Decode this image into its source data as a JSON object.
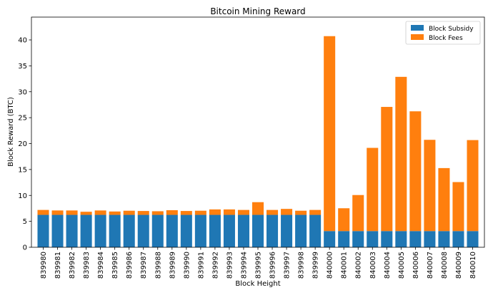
{
  "chart_data": {
    "type": "bar",
    "stacked": true,
    "title": "Bitcoin Mining Reward",
    "xlabel": "Block Height",
    "ylabel": "Block Reward (BTC)",
    "ylim": [
      0,
      44.4
    ],
    "yticks": [
      0,
      5,
      10,
      15,
      20,
      25,
      30,
      35,
      40
    ],
    "grid": false,
    "legend_position": "top-right",
    "categories": [
      "839980",
      "839981",
      "839982",
      "839983",
      "839984",
      "839985",
      "839986",
      "839987",
      "839988",
      "839989",
      "839990",
      "839991",
      "839992",
      "839993",
      "839994",
      "839995",
      "839996",
      "839997",
      "839998",
      "839999",
      "840000",
      "840001",
      "840002",
      "840003",
      "840004",
      "840005",
      "840006",
      "840007",
      "840008",
      "840009",
      "840010"
    ],
    "series": [
      {
        "name": "Block Subsidy",
        "color": "#1f77b4",
        "values": [
          6.25,
          6.25,
          6.25,
          6.25,
          6.25,
          6.25,
          6.25,
          6.25,
          6.25,
          6.25,
          6.25,
          6.25,
          6.25,
          6.25,
          6.25,
          6.25,
          6.25,
          6.25,
          6.25,
          6.25,
          3.125,
          3.125,
          3.125,
          3.125,
          3.125,
          3.125,
          3.125,
          3.125,
          3.125,
          3.125,
          3.125
        ]
      },
      {
        "name": "Block Fees",
        "color": "#ff7f0e",
        "values": [
          0.95,
          0.85,
          0.85,
          0.6,
          0.85,
          0.65,
          0.8,
          0.75,
          0.7,
          0.9,
          0.75,
          0.8,
          1.05,
          1.05,
          0.95,
          2.45,
          0.95,
          1.15,
          0.8,
          0.95,
          37.6,
          4.4,
          6.95,
          16.05,
          23.95,
          29.75,
          23.1,
          17.6,
          12.15,
          9.45,
          17.55
        ]
      }
    ]
  }
}
